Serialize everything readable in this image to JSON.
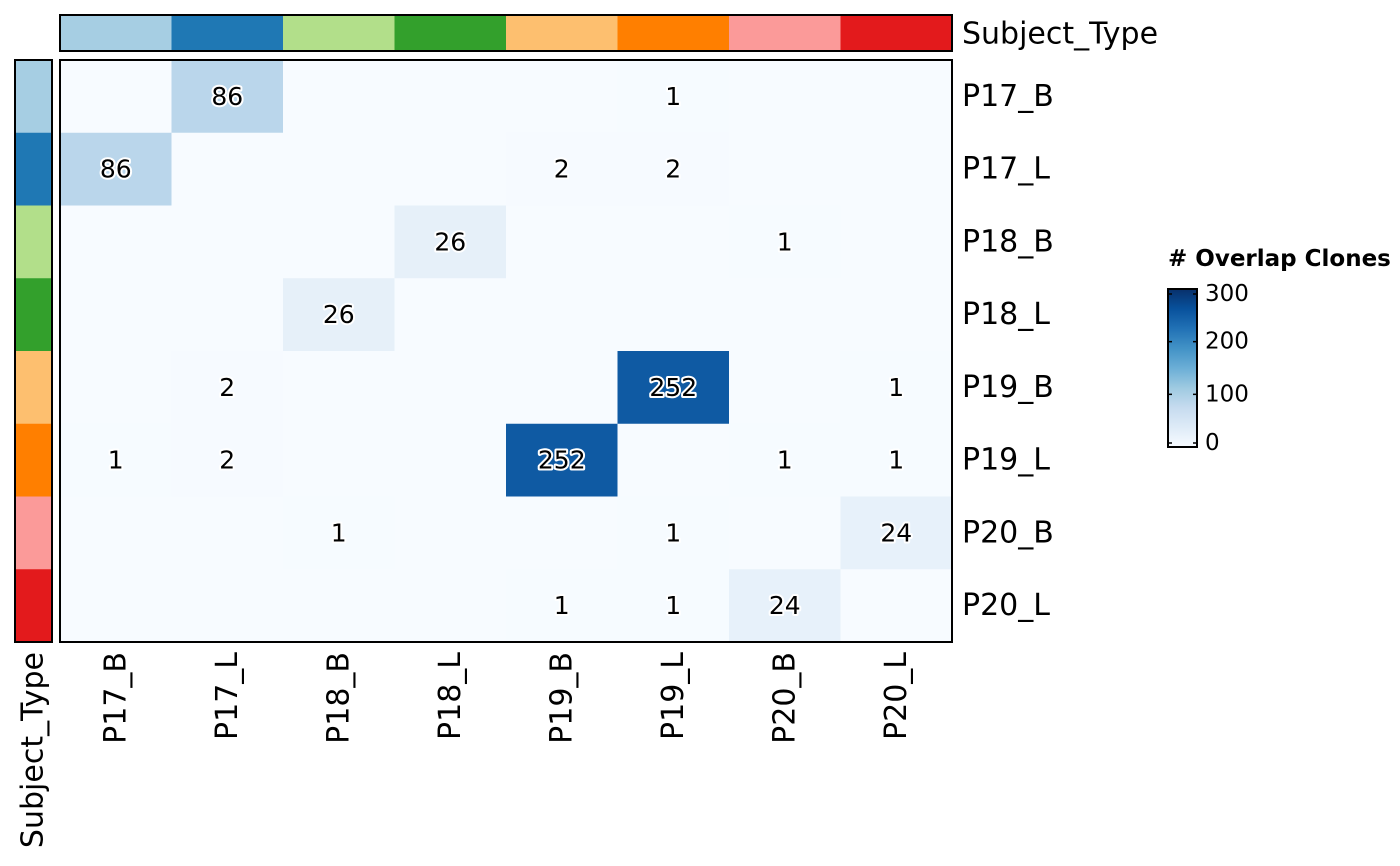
{
  "chart_data": {
    "type": "heatmap",
    "rows": [
      "P17_B",
      "P17_L",
      "P18_B",
      "P18_L",
      "P19_B",
      "P19_L",
      "P20_B",
      "P20_L"
    ],
    "columns": [
      "P17_B",
      "P17_L",
      "P18_B",
      "P18_L",
      "P19_B",
      "P19_L",
      "P20_B",
      "P20_L"
    ],
    "values": [
      [
        0,
        86,
        0,
        0,
        0,
        1,
        0,
        0
      ],
      [
        86,
        0,
        0,
        0,
        2,
        2,
        0,
        0
      ],
      [
        0,
        0,
        0,
        26,
        0,
        0,
        1,
        0
      ],
      [
        0,
        0,
        26,
        0,
        0,
        0,
        0,
        0
      ],
      [
        0,
        2,
        0,
        0,
        0,
        252,
        0,
        1
      ],
      [
        1,
        2,
        0,
        0,
        252,
        0,
        1,
        1
      ],
      [
        0,
        0,
        1,
        0,
        0,
        1,
        0,
        24
      ],
      [
        0,
        0,
        0,
        0,
        1,
        1,
        24,
        0
      ]
    ],
    "annotation": {
      "name": "Subject_Type",
      "colors": [
        "#a6cee3",
        "#1f78b4",
        "#b2df8a",
        "#33a02c",
        "#fdbf6f",
        "#ff7f00",
        "#fb9a99",
        "#e31a1c"
      ]
    },
    "legend": {
      "title": "# Overlap Clones",
      "ticks": [
        0,
        100,
        200,
        300
      ],
      "range": [
        0,
        300
      ],
      "placement": "right"
    },
    "color_scale": [
      "#f7fbff",
      "#deebf7",
      "#c6dbef",
      "#9ecae1",
      "#6baed6",
      "#4292c6",
      "#2171b5",
      "#08519c",
      "#08306b"
    ]
  }
}
